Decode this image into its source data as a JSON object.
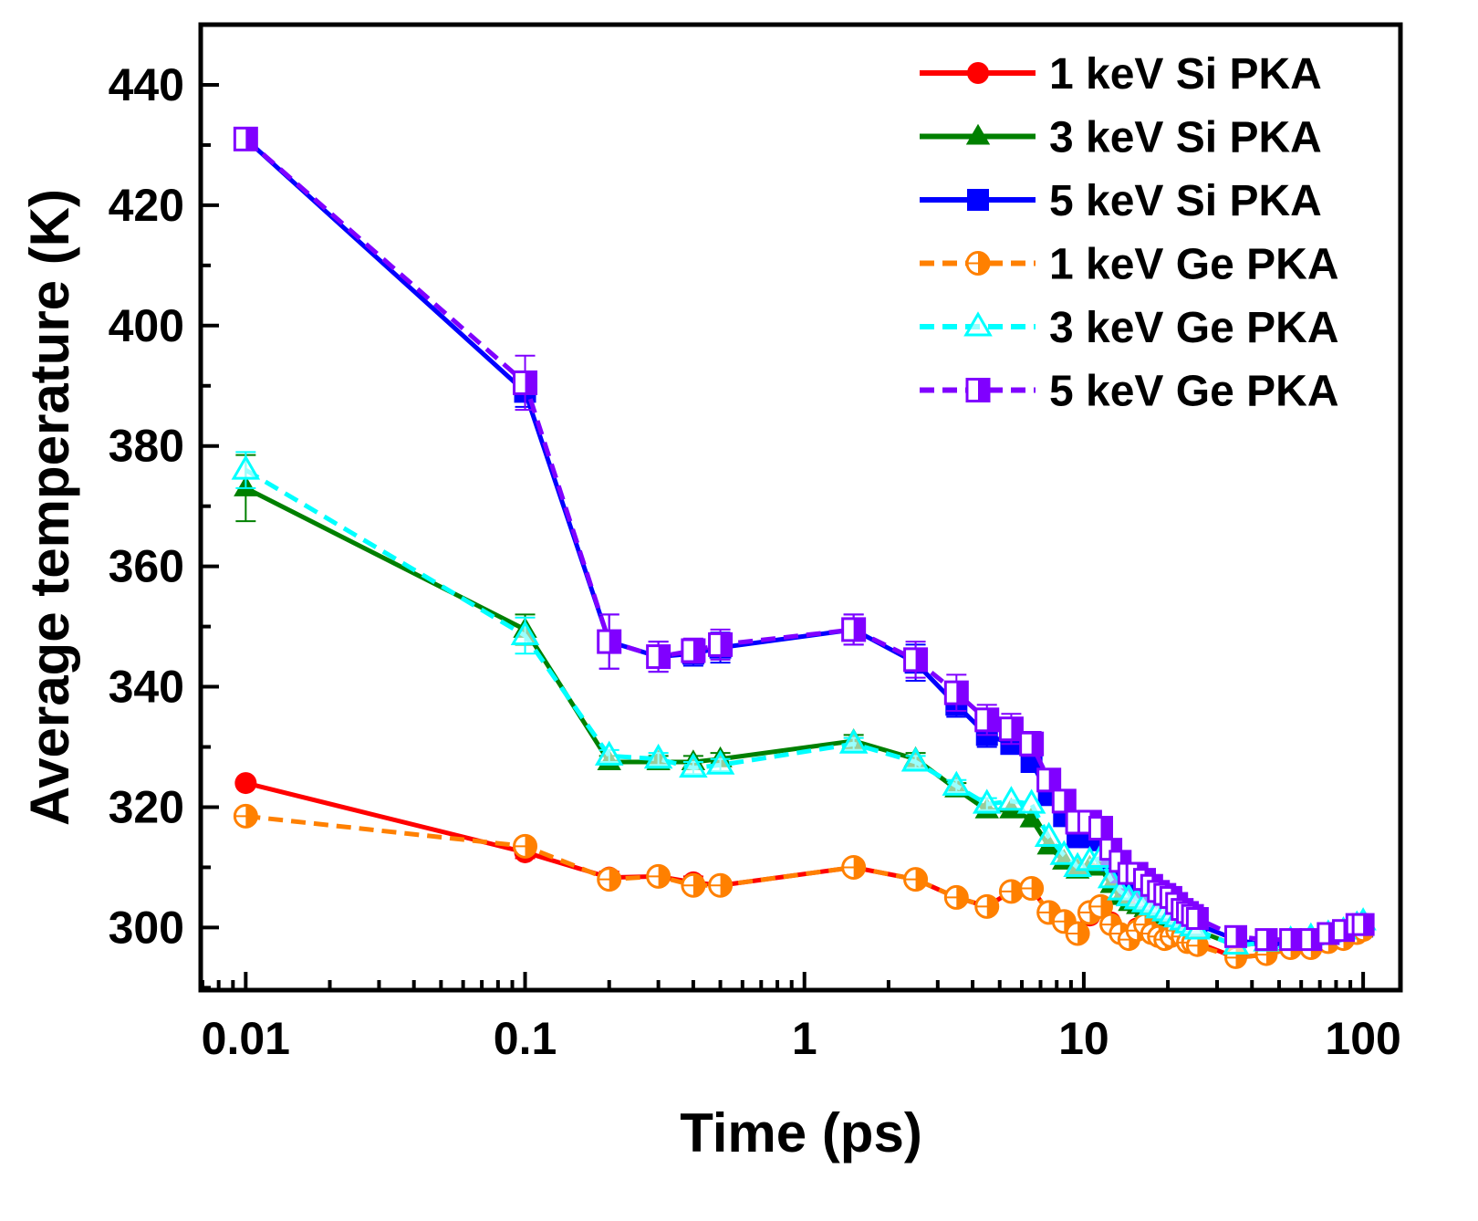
{
  "chart_data": {
    "type": "line",
    "title": "",
    "xlabel": "Time (ps)",
    "ylabel": "Average temperature (K)",
    "xscale": "log",
    "xlim": [
      0.0069,
      136
    ],
    "ylim": [
      289.6,
      450
    ],
    "xticks": [
      0.01,
      0.1,
      1,
      10,
      100
    ],
    "xtick_labels": [
      "0.01",
      "0.1",
      "1",
      "10",
      "100"
    ],
    "yticks": [
      300,
      320,
      340,
      360,
      380,
      400,
      420,
      440
    ],
    "ytick_labels": [
      "300",
      "320",
      "340",
      "360",
      "380",
      "400",
      "420",
      "440"
    ],
    "grid": false,
    "legend_position": "top-right",
    "x": [
      0.01,
      0.1,
      0.2,
      0.3,
      0.4,
      0.5,
      1.5,
      2.5,
      3.5,
      4.5,
      5.5,
      6.5,
      7.5,
      8.5,
      9.5,
      10.5,
      11.5,
      12.5,
      13.5,
      14.5,
      15.5,
      16.5,
      17.5,
      18.5,
      19.5,
      20.5,
      21.5,
      22.5,
      23.5,
      24.5,
      25.5,
      35,
      45,
      55,
      65,
      75,
      85,
      95,
      100
    ],
    "series": [
      {
        "name": "1 keV Si PKA",
        "color": "#ff0000",
        "marker": "circle",
        "style": "solid",
        "values": [
          324,
          312.5,
          308.3,
          308.5,
          307.5,
          307,
          310,
          308,
          305,
          303.5,
          306,
          306.5,
          302.5,
          301,
          299,
          302,
          303.5,
          301,
          299,
          298,
          300,
          301,
          299.5,
          299,
          298,
          299,
          300,
          299,
          298,
          298,
          297.5,
          295,
          295.5,
          296.5,
          296.5,
          298,
          298,
          299,
          299.5
        ],
        "err": [
          0.5,
          1,
          1,
          1,
          1,
          1,
          1,
          1,
          1,
          1
        ]
      },
      {
        "name": "3 keV Si PKA",
        "color": "#008000",
        "marker": "triangle",
        "style": "solid",
        "values": [
          373,
          349.5,
          327.5,
          327.5,
          327.5,
          328,
          331,
          328,
          323,
          319.5,
          319.5,
          318,
          313.5,
          311,
          309.5,
          310,
          310,
          307,
          305,
          304,
          303.5,
          303,
          302.5,
          302,
          301.5,
          301,
          300.5,
          300.5,
          300,
          300,
          299.5,
          297,
          297.5,
          298,
          298.5,
          299,
          299.5,
          300,
          300
        ],
        "err": [
          5.5,
          2.5,
          1,
          1,
          1,
          1,
          1,
          1,
          1,
          1
        ]
      },
      {
        "name": "5 keV Si PKA",
        "color": "#0000ff",
        "marker": "square",
        "style": "solid",
        "values": [
          431,
          389,
          347.5,
          345,
          345.5,
          346.5,
          349.5,
          344,
          337,
          332,
          330.5,
          327.5,
          322,
          318.5,
          315,
          315,
          314.5,
          311,
          309,
          307,
          306,
          305,
          304.5,
          304,
          303.5,
          303,
          302.5,
          302,
          301.5,
          301,
          300.5,
          298,
          297,
          297.5,
          297.5,
          298.5,
          299,
          300,
          300
        ],
        "err": [
          1,
          2.5,
          4.5,
          2.5,
          2,
          2.5,
          2.5,
          3,
          2,
          2
        ]
      },
      {
        "name": "1 keV Ge PKA",
        "color": "#ff8000",
        "marker": "circle-half",
        "style": "dashed",
        "values": [
          318.5,
          313.5,
          308,
          308.5,
          307,
          307,
          310,
          308,
          305,
          303.5,
          306,
          306.5,
          302.5,
          301,
          299,
          302.5,
          303.5,
          300.5,
          299,
          298,
          299.5,
          300.5,
          299,
          298.5,
          298,
          298.5,
          299.5,
          298.5,
          297.5,
          297.5,
          297,
          295,
          295.5,
          296.5,
          296.5,
          297.5,
          298,
          299,
          299.5
        ],
        "err": [
          1,
          1,
          1,
          1,
          1,
          1,
          1,
          1,
          1,
          1
        ]
      },
      {
        "name": "3 keV Ge PKA",
        "color": "#00ffff",
        "marker": "triangle-open",
        "style": "dashed",
        "values": [
          376,
          348.5,
          328.5,
          328,
          326.5,
          327,
          330.5,
          327.5,
          323.5,
          320.5,
          321,
          320.5,
          315,
          312,
          310,
          311,
          311.5,
          308,
          306,
          305,
          304.5,
          304,
          303.5,
          303,
          302.5,
          302,
          301.5,
          301,
          300.5,
          300,
          299.5,
          297,
          297.5,
          298,
          298.5,
          299,
          299.5,
          300.5,
          301
        ],
        "err": [
          3,
          3,
          1,
          1,
          1,
          1,
          1,
          1,
          1,
          1
        ]
      },
      {
        "name": "5 keV Ge PKA",
        "color": "#8000ff",
        "marker": "square-half",
        "style": "dashed",
        "values": [
          431,
          390.5,
          347.5,
          345,
          346,
          347,
          349.5,
          344.5,
          339,
          334.5,
          333,
          330.5,
          324.5,
          321,
          317.5,
          317.5,
          316.5,
          313,
          311,
          309,
          309,
          308,
          307,
          306,
          305.5,
          305,
          304,
          303,
          302.5,
          302,
          301.5,
          298.5,
          298,
          298,
          298,
          299,
          299.5,
          300.5,
          300.5
        ],
        "err": [
          1,
          4.5,
          4.5,
          2.5,
          2,
          2.5,
          2.5,
          3,
          3,
          2.5,
          2.5,
          2,
          1.5,
          1.5,
          1.5
        ]
      }
    ]
  }
}
